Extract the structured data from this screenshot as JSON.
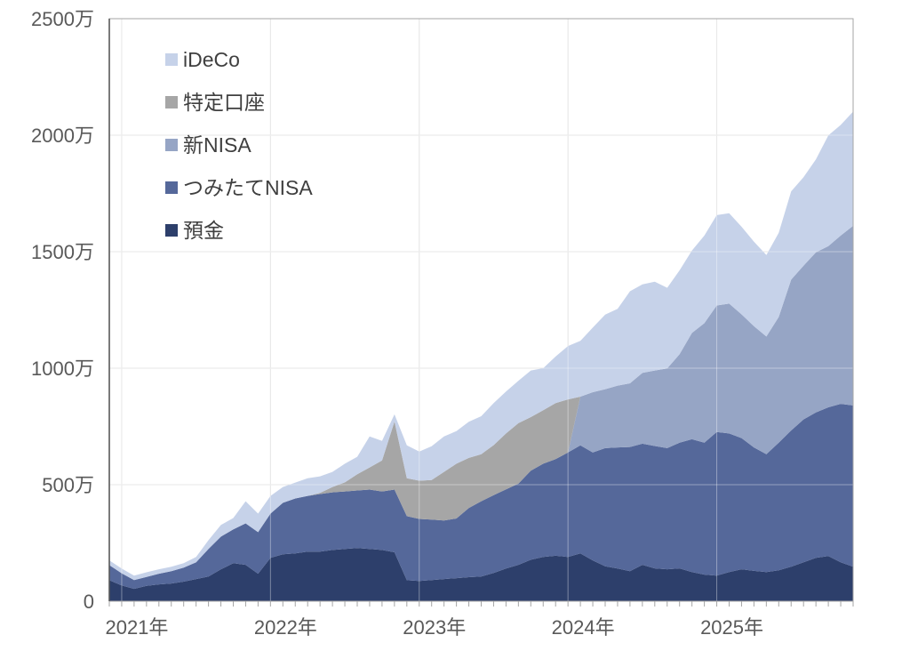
{
  "chart_data": {
    "type": "area",
    "stacked": true,
    "unit": "万円",
    "title": "",
    "xlabel": "",
    "ylabel": "",
    "ylim": [
      0,
      2500
    ],
    "grid": true,
    "legend_position": "top-left-inside",
    "legend_order": [
      "iDeCo",
      "特定口座",
      "新NISA",
      "つみたてNISA",
      "預金"
    ],
    "y_ticks": [
      {
        "value": 0,
        "label": "0"
      },
      {
        "value": 500,
        "label": "500万"
      },
      {
        "value": 1000,
        "label": "1000万"
      },
      {
        "value": 1500,
        "label": "1500万"
      },
      {
        "value": 2000,
        "label": "2000万"
      },
      {
        "value": 2500,
        "label": "2500万"
      }
    ],
    "x_year_labels": [
      {
        "month_index": 1,
        "label": "2021年"
      },
      {
        "month_index": 13,
        "label": "2022年"
      },
      {
        "month_index": 25,
        "label": "2023年"
      },
      {
        "month_index": 37,
        "label": "2024年"
      },
      {
        "month_index": 49,
        "label": "2025年"
      }
    ],
    "months": [
      "2020-12",
      "2021-01",
      "2021-02",
      "2021-03",
      "2021-04",
      "2021-05",
      "2021-06",
      "2021-07",
      "2021-08",
      "2021-09",
      "2021-10",
      "2021-11",
      "2021-12",
      "2022-01",
      "2022-02",
      "2022-03",
      "2022-04",
      "2022-05",
      "2022-06",
      "2022-07",
      "2022-08",
      "2022-09",
      "2022-10",
      "2022-11",
      "2022-12",
      "2023-01",
      "2023-02",
      "2023-03",
      "2023-04",
      "2023-05",
      "2023-06",
      "2023-07",
      "2023-08",
      "2023-09",
      "2023-10",
      "2023-11",
      "2023-12",
      "2024-01",
      "2024-02",
      "2024-03",
      "2024-04",
      "2024-05",
      "2024-06",
      "2024-07",
      "2024-08",
      "2024-09",
      "2024-10",
      "2024-11",
      "2024-12",
      "2025-01",
      "2025-02",
      "2025-03",
      "2025-04",
      "2025-05",
      "2025-06",
      "2025-07",
      "2025-08",
      "2025-09",
      "2025-10",
      "2025-11",
      "2025-12"
    ],
    "series": [
      {
        "name": "預金",
        "id": "yokin",
        "color": "#2d3f6b",
        "values": [
          90,
          68,
          53,
          66,
          72,
          76,
          84,
          95,
          106,
          137,
          163,
          156,
          118,
          186,
          201,
          205,
          213,
          213,
          220,
          224,
          228,
          224,
          220,
          210,
          90,
          87,
          91,
          95,
          99,
          103,
          106,
          121,
          140,
          156,
          178,
          190,
          195,
          190,
          205,
          175,
          150,
          140,
          129,
          156,
          141,
          137,
          141,
          125,
          114,
          110,
          125,
          137,
          130,
          125,
          133,
          148,
          167,
          186,
          194,
          167,
          148
        ]
      },
      {
        "name": "つみたてNISA",
        "id": "tsumitate-nisa",
        "color": "#55689a",
        "values": [
          65,
          52,
          38,
          38,
          46,
          53,
          60,
          72,
          118,
          140,
          145,
          178,
          178,
          190,
          221,
          236,
          239,
          247,
          247,
          247,
          247,
          255,
          251,
          269,
          275,
          266,
          259,
          251,
          256,
          297,
          323,
          334,
          340,
          349,
          382,
          400,
          415,
          448,
          464,
          463,
          507,
          520,
          533,
          520,
          525,
          520,
          539,
          570,
          566,
          616,
          595,
          563,
          530,
          506,
          547,
          585,
          613,
          624,
          638,
          680,
          692
        ]
      },
      {
        "name": "新NISA",
        "id": "shin-nisa",
        "color": "#96a5c5",
        "values": [
          0,
          0,
          0,
          0,
          0,
          0,
          0,
          0,
          0,
          0,
          0,
          0,
          0,
          0,
          0,
          0,
          0,
          0,
          0,
          0,
          0,
          0,
          0,
          0,
          0,
          0,
          0,
          0,
          0,
          0,
          0,
          0,
          0,
          0,
          0,
          0,
          0,
          0,
          209,
          259,
          253,
          265,
          273,
          304,
          324,
          342,
          380,
          456,
          513,
          543,
          557,
          531,
          520,
          505,
          540,
          647,
          660,
          687,
          692,
          722,
          771
        ]
      },
      {
        "name": "特定口座",
        "id": "tokutei-koza",
        "color": "#a6a6a6",
        "values": [
          0,
          0,
          0,
          0,
          0,
          0,
          0,
          0,
          0,
          0,
          0,
          0,
          0,
          0,
          0,
          0,
          0,
          5,
          23,
          39,
          70,
          95,
          133,
          292,
          163,
          164,
          170,
          209,
          235,
          215,
          202,
          215,
          240,
          259,
          230,
          230,
          240,
          228,
          0,
          0,
          0,
          0,
          0,
          0,
          0,
          0,
          0,
          0,
          0,
          0,
          0,
          0,
          0,
          0,
          0,
          0,
          0,
          0,
          0,
          0,
          0
        ]
      },
      {
        "name": "iDeCo",
        "id": "ideco",
        "color": "#c6d2e9",
        "values": [
          20,
          20,
          19,
          20,
          19,
          19,
          19,
          23,
          38,
          50,
          49,
          95,
          80,
          76,
          68,
          68,
          76,
          71,
          65,
          80,
          75,
          133,
          84,
          31,
          141,
          125,
          145,
          152,
          140,
          155,
          163,
          180,
          180,
          182,
          200,
          180,
          200,
          229,
          239,
          277,
          320,
          330,
          395,
          380,
          381,
          346,
          360,
          354,
          376,
          388,
          388,
          376,
          363,
          350,
          361,
          379,
          380,
          399,
          475,
          475,
          490
        ]
      }
    ],
    "colors": {
      "axis_text": "#595959",
      "legend_text": "#3f3f3f",
      "gridline": "#d9d9d9",
      "plot_border": "#a6a6a6",
      "left_axis": "#595959",
      "tick": "#a6a6a6",
      "background": "#ffffff"
    }
  }
}
